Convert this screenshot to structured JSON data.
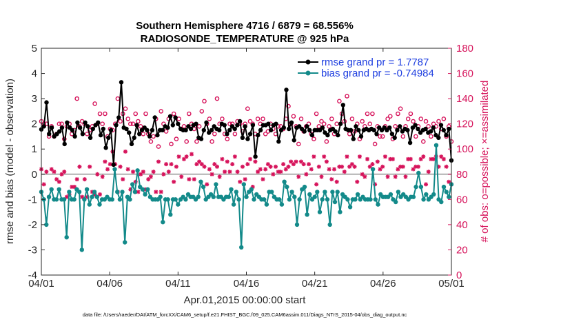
{
  "chart_data": {
    "type": "line",
    "title_line1": "Southern Hemisphere 4716 / 6879 = 68.556%",
    "title_line2": "RADIOSONDE_TEMPERATURE @ 925 hPa",
    "xlabel": "Apr.01,2015 00:00:00 start",
    "ylabel_left": "rmse and bias (model - observation)",
    "ylabel_right": "# of obs: o=possible; ×=assimilated",
    "ylim_left": [
      -4,
      5
    ],
    "ylim_right": [
      0,
      180
    ],
    "xlim_days": [
      0,
      30
    ],
    "x_ticks": [
      {
        "day": 0,
        "label": "04/01"
      },
      {
        "day": 5,
        "label": "04/06"
      },
      {
        "day": 10,
        "label": "04/11"
      },
      {
        "day": 15,
        "label": "04/16"
      },
      {
        "day": 20,
        "label": "04/21"
      },
      {
        "day": 25,
        "label": "04/26"
      },
      {
        "day": 30,
        "label": "05/01"
      }
    ],
    "y_ticks_left": [
      "-4",
      "-3",
      "-2",
      "-1",
      "0",
      "1",
      "2",
      "3",
      "4",
      "5"
    ],
    "y_ticks_right": [
      "0",
      "20",
      "40",
      "60",
      "80",
      "100",
      "120",
      "140",
      "160",
      "180"
    ],
    "series": [
      {
        "name": "rmse grand pr = 1.7787",
        "color": "#000000",
        "values": [
          1.78,
          1.9,
          2.85,
          1.6,
          1.85,
          1.5,
          1.6,
          1.7,
          1.85,
          1.2,
          2.05,
          1.85,
          1.75,
          1.5,
          2.05,
          1.85,
          1.6,
          2.05,
          1.9,
          1.45,
          1.8,
          1.95,
          2.05,
          1.55,
          1.8,
          1.05,
          1.45,
          1.75,
          0.38,
          1.95,
          2.25,
          3.65,
          1.85,
          1.8,
          1.65,
          1.2,
          1.45,
          1.95,
          1.6,
          1.75,
          1.85,
          1.75,
          1.5,
          1.75,
          2.25,
          1.55,
          1.75,
          1.75,
          1.9,
          1.85,
          2.3,
          1.95,
          2.25,
          2.0,
          1.8,
          1.75,
          1.75,
          1.9,
          1.8,
          1.95,
          2.0,
          1.45,
          1.4,
          1.75,
          2.05,
          1.65,
          1.75,
          1.9,
          1.8,
          1.75,
          2.0,
          1.95,
          1.6,
          1.75,
          1.9,
          1.8,
          1.95,
          2.1,
          1.45,
          1.9,
          1.4,
          1.6,
          1.95,
          0.7,
          1.55,
          1.75,
          1.95,
          1.95,
          2.0,
          1.75,
          1.95,
          2.0,
          1.3,
          1.75,
          1.85,
          3.35,
          1.8,
          2.05,
          1.35,
          1.85,
          1.9,
          1.8,
          1.7,
          1.9,
          1.75,
          1.55,
          1.75,
          1.75,
          1.75,
          1.85,
          1.65,
          1.55,
          1.75,
          1.8,
          1.7,
          1.55,
          2.0,
          2.75,
          1.8,
          1.75,
          1.75,
          1.4,
          1.9,
          1.75,
          1.5,
          1.75,
          1.8,
          1.75,
          1.8,
          1.75,
          1.6,
          1.85,
          1.75,
          1.85,
          1.75,
          1.85,
          1.6,
          1.45,
          1.75,
          1.9,
          1.7,
          1.8,
          1.75,
          1.25,
          1.85,
          1.95,
          1.8,
          1.65,
          1.75,
          1.8,
          1.65,
          1.7,
          1.85,
          1.55,
          1.45,
          1.95,
          1.75,
          1.55,
          1.8,
          0.55
        ]
      },
      {
        "name": "bias grand pr = -0.74984",
        "color": "#138a8a",
        "values": [
          -0.7,
          -1.0,
          -2.0,
          -0.9,
          -0.6,
          -1.0,
          -1.0,
          -0.6,
          -1.0,
          -1.0,
          -2.5,
          -0.7,
          -1.0,
          -1.0,
          -0.6,
          -0.7,
          -3.0,
          -1.0,
          -0.6,
          -1.2,
          -0.9,
          -0.7,
          -0.9,
          -1.2,
          -1.0,
          -1.0,
          -0.9,
          -1.0,
          -1.0,
          0.2,
          -0.7,
          -1.0,
          -0.7,
          -2.7,
          -0.9,
          -1.0,
          -0.4,
          -0.7,
          0.15,
          -0.5,
          -0.6,
          -0.8,
          -0.6,
          -0.9,
          -1.0,
          -1.0,
          -1.0,
          -0.9,
          -1.9,
          -1.0,
          -1.0,
          -1.6,
          -1.0,
          -1.0,
          -1.2,
          -1.0,
          -0.9,
          -1.0,
          -0.8,
          -0.9,
          -0.9,
          -1.0,
          -0.9,
          -0.3,
          -0.5,
          -1.0,
          -0.9,
          -0.8,
          -0.9,
          -0.4,
          -0.9,
          -0.9,
          -1.0,
          -0.9,
          -0.9,
          -0.6,
          -1.2,
          -0.7,
          -1.0,
          -2.9,
          -0.4,
          -0.9,
          -0.7,
          -0.6,
          -1.0,
          -0.8,
          -0.9,
          -1.0,
          -1.0,
          -1.2,
          -0.7,
          -0.7,
          -0.9,
          -1.0,
          -1.0,
          -1.2,
          -0.3,
          -0.5,
          -1.0,
          -0.7,
          -0.9,
          -2.0,
          -1.0,
          -0.6,
          -0.5,
          -1.6,
          -0.8,
          -1.0,
          -0.9,
          -0.7,
          -1.5,
          -1.0,
          -0.7,
          -1.0,
          -2.0,
          -0.7,
          -1.1,
          -0.7,
          -1.5,
          -0.8,
          -0.9,
          -1.0,
          -1.3,
          -1.0,
          -1.0,
          -0.8,
          -1.0,
          -0.9,
          -1.0,
          -1.0,
          -1.0,
          0.2,
          -1.0,
          -1.2,
          -0.8,
          -0.9,
          -0.9,
          -0.9,
          -0.8,
          -1.0,
          -1.1,
          -0.7,
          -0.9,
          -0.8,
          -0.9,
          -1.0,
          -0.9,
          -0.9,
          -0.5,
          0.05,
          -0.5,
          -1.0,
          -0.8,
          -1.0,
          -0.9,
          -0.8,
          1.15,
          -1.0,
          -1.1,
          -0.5,
          -0.7,
          -0.9,
          -0.4
        ]
      },
      {
        "name": "possible (o)",
        "color": "#d6125a",
        "values": [
          122,
          120,
          120,
          110,
          118,
          110,
          112,
          120,
          120,
          108,
          118,
          120,
          112,
          115,
          140,
          118,
          122,
          120,
          112,
          115,
          118,
          136,
          120,
          128,
          120,
          128,
          110,
          116,
          115,
          120,
          140,
          122,
          128,
          132,
          124,
          120,
          120,
          128,
          122,
          118,
          112,
          128,
          112,
          106,
          110,
          124,
          102,
          130,
          120,
          114,
          124,
          104,
          128,
          108,
          124,
          116,
          118,
          106,
          128,
          120,
          116,
          106,
          118,
          130,
          138,
          120,
          124,
          106,
          112,
          140,
          120,
          124,
          112,
          108,
          120,
          120,
          112,
          122,
          120,
          114,
          120,
          132,
          122,
          120,
          112,
          124,
          120,
          124,
          112,
          114,
          120,
          116,
          112,
          118,
          118,
          116,
          124,
          134,
          120,
          126,
          118,
          104,
          124,
          114,
          118,
          120,
          112,
          108,
          128,
          118,
          122,
          120,
          106,
          118,
          124,
          112,
          120,
          138,
          128,
          122,
          142,
          112,
          124,
          114,
          120,
          108,
          122,
          118,
          128,
          120,
          128,
          104,
          118,
          110,
          110,
          118,
          124,
          126,
          108,
          118,
          128,
          132,
          110,
          118,
          124,
          128,
          122,
          110,
          118,
          124,
          106,
          122,
          118,
          110,
          120,
          118,
          122,
          116,
          124,
          110,
          118,
          106
        ]
      },
      {
        "name": "assimilated (×)",
        "color": "#d6125a",
        "values": [
          84,
          72,
          82,
          62,
          84,
          82,
          76,
          74,
          80,
          82,
          62,
          64,
          70,
          70,
          76,
          86,
          62,
          76,
          62,
          86,
          66,
          64,
          80,
          64,
          78,
          90,
          84,
          88,
          98,
          88,
          66,
          86,
          76,
          98,
          84,
          68,
          82,
          74,
          66,
          80,
          82,
          68,
          76,
          78,
          82,
          66,
          90,
          66,
          80,
          88,
          82,
          88,
          74,
          86,
          94,
          78,
          92,
          94,
          76,
          96,
          76,
          88,
          90,
          88,
          86,
          72,
          84,
          80,
          88,
          86,
          78,
          92,
          82,
          90,
          82,
          88,
          94,
          82,
          74,
          86,
          76,
          88,
          92,
          70,
          90,
          82,
          84,
          76,
          84,
          88,
          86,
          80,
          86,
          82,
          82,
          88,
          84,
          86,
          90,
          88,
          90,
          78,
          90,
          88,
          80,
          88,
          84,
          94,
          72,
          86,
          78,
          94,
          90,
          84,
          76,
          84,
          74,
          86,
          86,
          82,
          94,
          86,
          88,
          86,
          74,
          94,
          80,
          78,
          92,
          86,
          88,
          72,
          90,
          84,
          86,
          94,
          78,
          92,
          92,
          78,
          84,
          86,
          86,
          78,
          92,
          92,
          84,
          86,
          86,
          92,
          94,
          72,
          82,
          92,
          92,
          94,
          86,
          94,
          92,
          86,
          74,
          72
        ]
      }
    ]
  },
  "footer": "data file: /Users/raeder/DAI/ATM_forcXX/CAM6_setup/f.e21.FHIST_BGC.f09_025.CAM6assim.011/Diags_NTrS_2015-04/obs_diag_output.nc"
}
